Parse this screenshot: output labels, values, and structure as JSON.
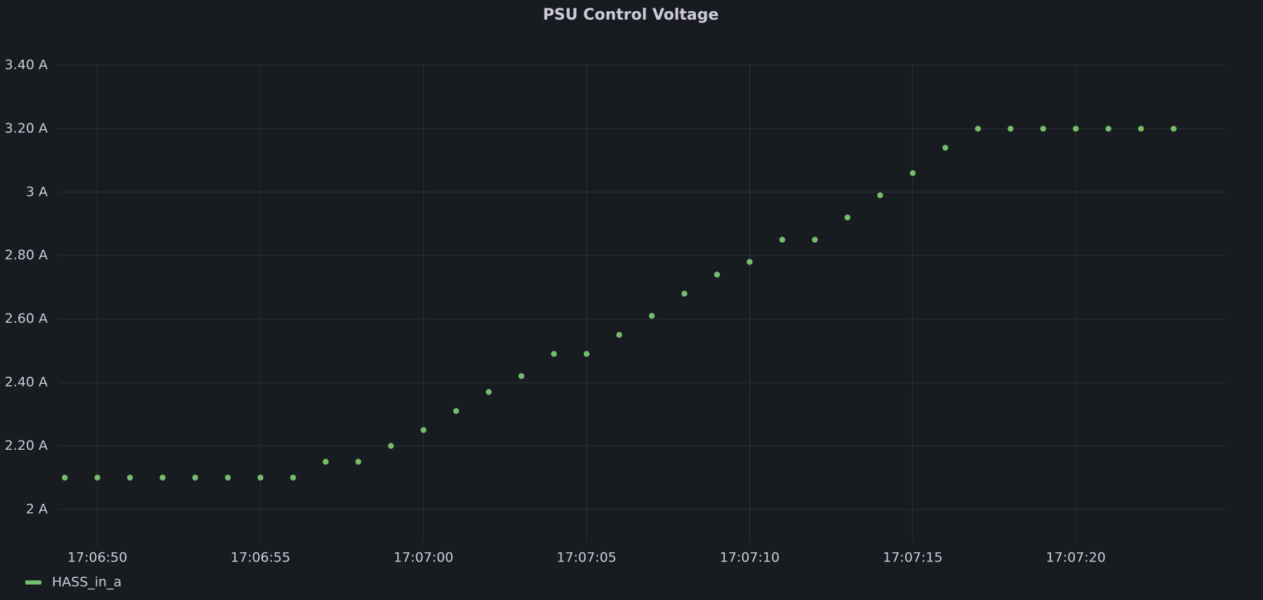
{
  "chart_data": {
    "type": "scatter",
    "title": "PSU Control Voltage",
    "x": [
      "17:06:49",
      "17:06:50",
      "17:06:51",
      "17:06:52",
      "17:06:53",
      "17:06:54",
      "17:06:55",
      "17:06:56",
      "17:06:57",
      "17:06:58",
      "17:06:59",
      "17:07:00",
      "17:07:01",
      "17:07:02",
      "17:07:03",
      "17:07:04",
      "17:07:05",
      "17:07:06",
      "17:07:07",
      "17:07:08",
      "17:07:09",
      "17:07:10",
      "17:07:11",
      "17:07:12",
      "17:07:13",
      "17:07:14",
      "17:07:15",
      "17:07:16",
      "17:07:17",
      "17:07:18",
      "17:07:19",
      "17:07:20",
      "17:07:21",
      "17:07:22",
      "17:07:23"
    ],
    "series": [
      {
        "name": "HASS_in_a",
        "color": "#73bf69",
        "values": [
          2.1,
          2.1,
          2.1,
          2.1,
          2.1,
          2.1,
          2.1,
          2.1,
          2.15,
          2.15,
          2.2,
          2.25,
          2.31,
          2.37,
          2.42,
          2.49,
          2.49,
          2.55,
          2.61,
          2.68,
          2.74,
          2.78,
          2.85,
          2.85,
          2.92,
          2.99,
          3.06,
          3.14,
          3.2,
          3.2,
          3.2,
          3.2,
          3.2,
          3.2,
          3.2
        ]
      }
    ],
    "xlim": [
      "17:06:48.8",
      "17:07:24.6"
    ],
    "xticks": [
      "17:06:50",
      "17:06:55",
      "17:07:00",
      "17:07:05",
      "17:07:10",
      "17:07:15",
      "17:07:20"
    ],
    "ylim": [
      1.9,
      3.4
    ],
    "yticks": [
      {
        "value": 2,
        "label": "2 A"
      },
      {
        "value": 2.2,
        "label": "2.20 A"
      },
      {
        "value": 2.4,
        "label": "2.40 A"
      },
      {
        "value": 2.6,
        "label": "2.60 A"
      },
      {
        "value": 2.8,
        "label": "2.80 A"
      },
      {
        "value": 3,
        "label": "3 A"
      },
      {
        "value": 3.2,
        "label": "3.20 A"
      },
      {
        "value": 3.4,
        "label": "3.40 A"
      }
    ],
    "grid": true,
    "legend": "bottom-left"
  }
}
